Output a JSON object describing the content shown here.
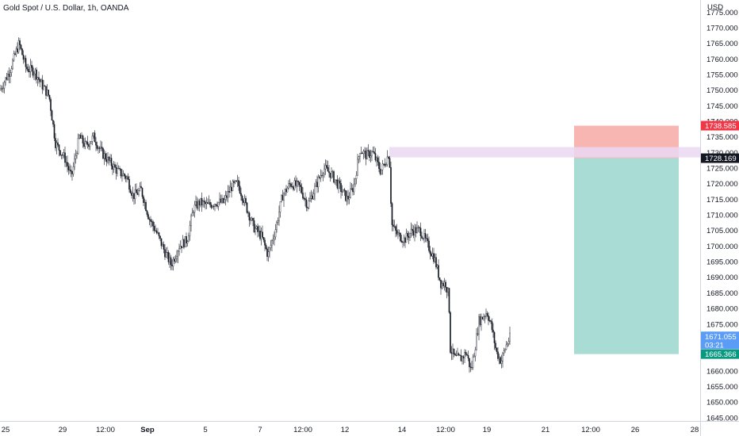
{
  "chart_data": {
    "type": "candlestick",
    "title": "Gold Spot / U.S. Dollar, 1h, OANDA",
    "currency": "USD",
    "ylim": [
      1643,
      1778
    ],
    "y_ticks": [
      1645,
      1650,
      1655,
      1660,
      1665,
      1670,
      1675,
      1680,
      1685,
      1690,
      1695,
      1700,
      1705,
      1710,
      1715,
      1720,
      1725,
      1730,
      1735,
      1740,
      1745,
      1750,
      1755,
      1760,
      1765,
      1770,
      1775
    ],
    "y_tick_labels": [
      "1645.000",
      "1650.000",
      "1655.000",
      "1660.000",
      "1665.000",
      "1670.000",
      "1675.000",
      "1680.000",
      "1685.000",
      "1690.000",
      "1695.000",
      "1700.000",
      "1705.000",
      "1710.000",
      "1715.000",
      "1720.000",
      "1725.000",
      "1730.000",
      "1735.000",
      "1740.000",
      "1745.000",
      "1750.000",
      "1755.000",
      "1760.000",
      "1765.000",
      "1770.000",
      "1775.000"
    ],
    "x_labels": [
      "25",
      "29",
      "12:00",
      "Sep",
      "5",
      "7",
      "12:00",
      "12",
      "14",
      "12:00",
      "19",
      "21",
      "12:00",
      "26",
      "28"
    ],
    "price_path": [
      [
        0,
        1750
      ],
      [
        12,
        1756
      ],
      [
        24,
        1765
      ],
      [
        33,
        1757
      ],
      [
        44,
        1756
      ],
      [
        52,
        1752
      ],
      [
        62,
        1748
      ],
      [
        70,
        1733
      ],
      [
        82,
        1728
      ],
      [
        90,
        1722
      ],
      [
        100,
        1735
      ],
      [
        108,
        1732
      ],
      [
        118,
        1735
      ],
      [
        128,
        1730
      ],
      [
        138,
        1727
      ],
      [
        148,
        1724
      ],
      [
        160,
        1722
      ],
      [
        168,
        1716
      ],
      [
        178,
        1718
      ],
      [
        188,
        1709
      ],
      [
        198,
        1704
      ],
      [
        208,
        1698
      ],
      [
        216,
        1694
      ],
      [
        226,
        1700
      ],
      [
        236,
        1702
      ],
      [
        244,
        1712
      ],
      [
        252,
        1714
      ],
      [
        262,
        1713
      ],
      [
        272,
        1714
      ],
      [
        282,
        1714
      ],
      [
        292,
        1719
      ],
      [
        300,
        1720
      ],
      [
        310,
        1713
      ],
      [
        320,
        1706
      ],
      [
        330,
        1703
      ],
      [
        338,
        1697
      ],
      [
        348,
        1706
      ],
      [
        356,
        1716
      ],
      [
        366,
        1720
      ],
      [
        378,
        1719
      ],
      [
        388,
        1713
      ],
      [
        398,
        1719
      ],
      [
        408,
        1725
      ],
      [
        418,
        1723
      ],
      [
        428,
        1719
      ],
      [
        438,
        1715
      ],
      [
        446,
        1719
      ],
      [
        454,
        1731
      ],
      [
        462,
        1729
      ],
      [
        470,
        1730
      ],
      [
        480,
        1724
      ],
      [
        486,
        1727
      ],
      [
        491,
        1730
      ],
      [
        494,
        1707
      ],
      [
        500,
        1704
      ],
      [
        510,
        1702
      ],
      [
        520,
        1705
      ],
      [
        530,
        1705
      ],
      [
        540,
        1700
      ],
      [
        548,
        1696
      ],
      [
        556,
        1688
      ],
      [
        562,
        1688
      ],
      [
        566,
        1684
      ],
      [
        568,
        1667
      ],
      [
        574,
        1664
      ],
      [
        582,
        1664
      ],
      [
        588,
        1666
      ],
      [
        594,
        1660
      ],
      [
        600,
        1669
      ],
      [
        604,
        1676
      ],
      [
        608,
        1677
      ],
      [
        614,
        1679
      ],
      [
        620,
        1674
      ],
      [
        626,
        1666
      ],
      [
        632,
        1663
      ],
      [
        638,
        1668
      ],
      [
        644,
        1671.055
      ]
    ],
    "last_price": "1671.055",
    "countdown": "03:21",
    "position": {
      "stop": 1738.585,
      "entry": 1728.169,
      "target": 1665.366,
      "stop_label": "1738.585",
      "entry_label": "1728.169",
      "target_label": "1665.366"
    },
    "colors": {
      "candle": "#131722",
      "stop_zone": "#f7a9a6",
      "target_zone": "#a3dad3",
      "entry_band": "#ead8f2",
      "stop_badge": "#f23645",
      "entry_badge": "#131722",
      "target_badge": "#089981",
      "last_badge": "#5b9cf6"
    }
  }
}
